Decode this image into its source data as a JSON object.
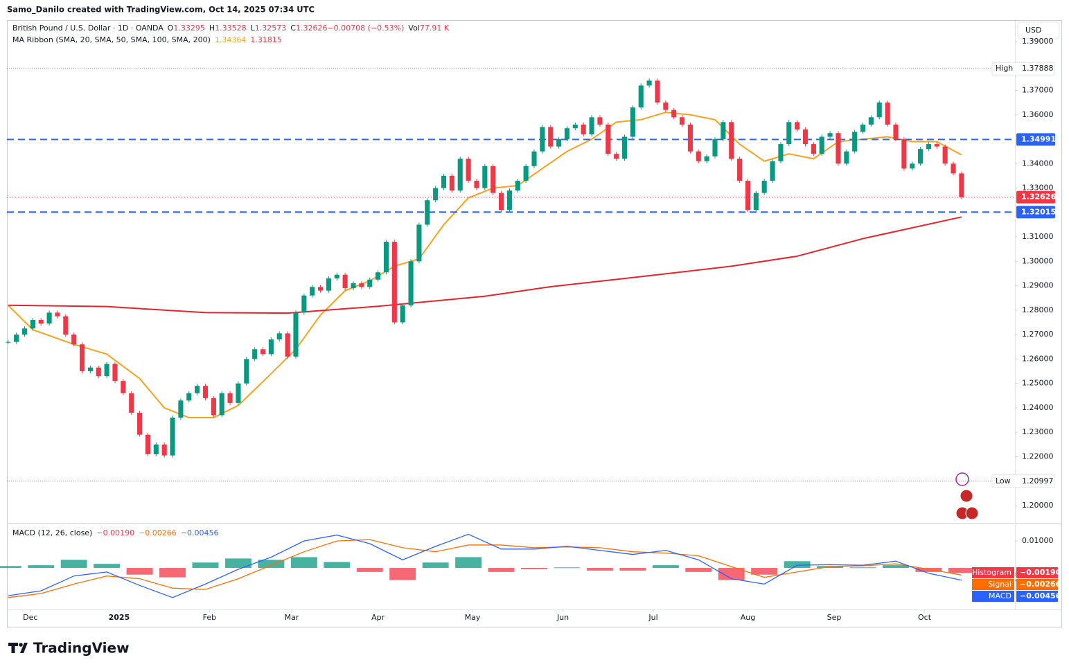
{
  "header": {
    "credit": "Samo_Danilo created with TradingView.com, Oct 14, 2025 07:34 UTC",
    "currency": "USD"
  },
  "footer": {
    "brand": "TradingView"
  },
  "chart_data": {
    "type": "candlestick",
    "legend": {
      "symbol": "British Pound / U.S. Dollar · 1D · OANDA",
      "items": [
        {
          "text": "O",
          "color": "#131722"
        },
        {
          "text": "1.33295",
          "color": "#f23645"
        },
        {
          "text": "H",
          "color": "#131722"
        },
        {
          "text": "1.33528",
          "color": "#f23645"
        },
        {
          "text": "L",
          "color": "#131722"
        },
        {
          "text": "1.32573",
          "color": "#f23645"
        },
        {
          "text": "C",
          "color": "#131722"
        },
        {
          "text": "1.32626",
          "color": "#f23645"
        },
        {
          "text": "−0.00708 (−0.53%)",
          "color": "#f23645"
        },
        {
          "text": "Vol",
          "color": "#131722"
        },
        {
          "text": "77.91 K",
          "color": "#f23645"
        }
      ],
      "ma_title": "MA Ribbon (SMA, 20, SMA, 50, SMA, 100, SMA, 200)",
      "ma_items": [
        {
          "text": "1.34364",
          "color": "#f7a21b"
        },
        {
          "text": "1.31815",
          "color": "#f23645"
        }
      ]
    },
    "up_color": "#089981",
    "down_color": "#f23645",
    "xlim": [
      -0.15,
      122.5
    ],
    "xticks": [
      {
        "value": 2.7,
        "label": "Dec"
      },
      {
        "value": 13.5,
        "label": "2025"
      },
      {
        "value": 24.5,
        "label": "Feb"
      },
      {
        "value": 34.5,
        "label": "Mar"
      },
      {
        "value": 45,
        "label": "Apr"
      },
      {
        "value": 56.5,
        "label": "May"
      },
      {
        "value": 67.5,
        "label": "Jun"
      },
      {
        "value": 78.5,
        "label": "Jul"
      },
      {
        "value": 90,
        "label": "Aug"
      },
      {
        "value": 100.5,
        "label": "Sep"
      },
      {
        "value": 111.5,
        "label": "Oct"
      }
    ],
    "ylim": [
      1.1929,
      1.3985
    ],
    "yticks": [
      {
        "value": 1.39,
        "label": "1.39000"
      },
      {
        "value": 1.37,
        "label": "1.37000"
      },
      {
        "value": 1.36,
        "label": "1.36000"
      },
      {
        "value": 1.34,
        "label": "1.34000"
      },
      {
        "value": 1.33,
        "label": "1.33000"
      },
      {
        "value": 1.31,
        "label": "1.31000"
      },
      {
        "value": 1.3,
        "label": "1.30000"
      },
      {
        "value": 1.29,
        "label": "1.29000"
      },
      {
        "value": 1.28,
        "label": "1.28000"
      },
      {
        "value": 1.27,
        "label": "1.27000"
      },
      {
        "value": 1.26,
        "label": "1.26000"
      },
      {
        "value": 1.25,
        "label": "1.25000"
      },
      {
        "value": 1.24,
        "label": "1.24000"
      },
      {
        "value": 1.23,
        "label": "1.23000"
      },
      {
        "value": 1.22,
        "label": "1.22000"
      },
      {
        "value": 1.2,
        "label": "1.20000"
      }
    ],
    "series": [
      {
        "name": "GBPUSD",
        "values": [
          1.267,
          1.27,
          1.2725,
          1.276,
          1.2745,
          1.279,
          1.2775,
          1.27,
          1.266,
          1.255,
          1.2565,
          1.253,
          1.258,
          1.251,
          1.246,
          1.238,
          1.229,
          1.221,
          1.225,
          1.2205,
          1.236,
          1.243,
          1.246,
          1.249,
          1.244,
          1.237,
          1.246,
          1.242,
          1.25,
          1.26,
          1.264,
          1.262,
          1.268,
          1.2705,
          1.261,
          1.279,
          1.286,
          1.2895,
          1.288,
          1.293,
          1.2945,
          1.289,
          1.291,
          1.2895,
          1.2925,
          1.2955,
          1.308,
          1.275,
          1.282,
          1.3,
          1.315,
          1.325,
          1.33,
          1.335,
          1.329,
          1.342,
          1.333,
          1.33,
          1.339,
          1.328,
          1.321,
          1.329,
          1.333,
          1.339,
          1.345,
          1.355,
          1.347,
          1.35,
          1.3545,
          1.356,
          1.352,
          1.359,
          1.356,
          1.344,
          1.342,
          1.351,
          1.363,
          1.372,
          1.374,
          1.365,
          1.362,
          1.359,
          1.356,
          1.345,
          1.341,
          1.343,
          1.35,
          1.357,
          1.342,
          1.333,
          1.321,
          1.328,
          1.333,
          1.341,
          1.348,
          1.357,
          1.354,
          1.348,
          1.344,
          1.351,
          1.3525,
          1.34,
          1.345,
          1.353,
          1.356,
          1.359,
          1.365,
          1.356,
          1.35,
          1.338,
          1.34,
          1.346,
          1.348,
          1.347,
          1.34,
          1.336,
          1.32626
        ]
      }
    ],
    "moving_averages": [
      {
        "color": "#f7a21b",
        "x": [
          0,
          3,
          8,
          12,
          16,
          19,
          22,
          25,
          28,
          32,
          35,
          38,
          41,
          44,
          47,
          50,
          53,
          56,
          59,
          62,
          65,
          68,
          71,
          74,
          77,
          80,
          83,
          86,
          89,
          92,
          95,
          98,
          101,
          104,
          107,
          110,
          113,
          116
        ],
        "values": [
          1.282,
          1.272,
          1.266,
          1.262,
          1.252,
          1.24,
          1.236,
          1.236,
          1.241,
          1.254,
          1.264,
          1.278,
          1.288,
          1.292,
          1.298,
          1.301,
          1.315,
          1.326,
          1.33,
          1.331,
          1.338,
          1.345,
          1.35,
          1.357,
          1.358,
          1.361,
          1.36,
          1.358,
          1.348,
          1.341,
          1.344,
          1.342,
          1.349,
          1.35,
          1.351,
          1.349,
          1.349,
          1.3436
        ]
      },
      {
        "color": "#e8212b",
        "x": [
          0,
          12,
          24,
          34,
          45,
          58,
          66,
          79,
          88,
          96,
          104,
          116
        ],
        "values": [
          1.282,
          1.2815,
          1.279,
          1.2788,
          1.2816,
          1.2857,
          1.2896,
          1.2945,
          1.298,
          1.3021,
          1.3093,
          1.31815
        ]
      }
    ],
    "levels": [
      {
        "value": 1.34991,
        "color": "#2962ff"
      },
      {
        "value": 1.32015,
        "color": "#2962ff"
      }
    ],
    "high": {
      "label": "High",
      "value": 1.37888
    },
    "low": {
      "label": "Low",
      "value": 1.20997
    },
    "last_price": {
      "value": 1.32626,
      "color": "#f23645"
    },
    "macd": {
      "title": "MACD (12, 26, close)",
      "ylim": [
        -0.0149,
        0.0162
      ],
      "yticks": [
        {
          "value": 0.01,
          "label": "0.01000"
        }
      ],
      "x": [
        0,
        4,
        8,
        12,
        16,
        20,
        24,
        28,
        32,
        36,
        40,
        44,
        48,
        52,
        56,
        60,
        64,
        68,
        72,
        76,
        80,
        84,
        88,
        92,
        96,
        100,
        104,
        108,
        112,
        116
      ],
      "series": [
        {
          "name": "Histogram",
          "color": "#f23645",
          "up_color": "#089981",
          "values": [
            0.0007,
            0.001,
            0.003,
            0.0015,
            -0.0025,
            -0.0035,
            0.002,
            0.0035,
            0.003,
            0.004,
            0.0022,
            -0.0015,
            -0.0045,
            0.002,
            0.004,
            -0.0015,
            -0.0005,
            0.0002,
            -0.001,
            -0.001,
            0.001,
            -0.0015,
            -0.0045,
            -0.0025,
            0.0025,
            0.0007,
            0.0002,
            0.001,
            -0.0015,
            -0.0019
          ],
          "last": {
            "value": -0.0019,
            "label": "−0.00190"
          }
        },
        {
          "name": "Signal",
          "color": "#ff6d00",
          "values": [
            -0.011,
            -0.0095,
            -0.006,
            -0.003,
            -0.004,
            -0.0075,
            -0.008,
            -0.004,
            0.001,
            0.006,
            0.01,
            0.0105,
            0.0075,
            0.006,
            0.0085,
            0.0085,
            0.0075,
            0.0078,
            0.0075,
            0.006,
            0.0055,
            0.0045,
            0.0005,
            -0.0035,
            -0.0015,
            0.0005,
            0.0008,
            0.0015,
            -0.0005,
            -0.00266
          ],
          "last": {
            "value": -0.00266,
            "label": "−0.00266"
          }
        },
        {
          "name": "MACD",
          "color": "#2962ff",
          "values": [
            -0.0103,
            -0.0085,
            -0.003,
            -0.0015,
            -0.0065,
            -0.011,
            -0.006,
            -0.0005,
            0.004,
            0.01,
            0.0122,
            0.009,
            0.003,
            0.008,
            0.0125,
            0.007,
            0.007,
            0.008,
            0.0065,
            0.005,
            0.0065,
            0.003,
            -0.004,
            -0.006,
            0.001,
            0.0012,
            0.001,
            0.0025,
            -0.002,
            -0.00456
          ],
          "last": {
            "value": -0.00456,
            "label": "−0.00456"
          }
        }
      ]
    }
  }
}
